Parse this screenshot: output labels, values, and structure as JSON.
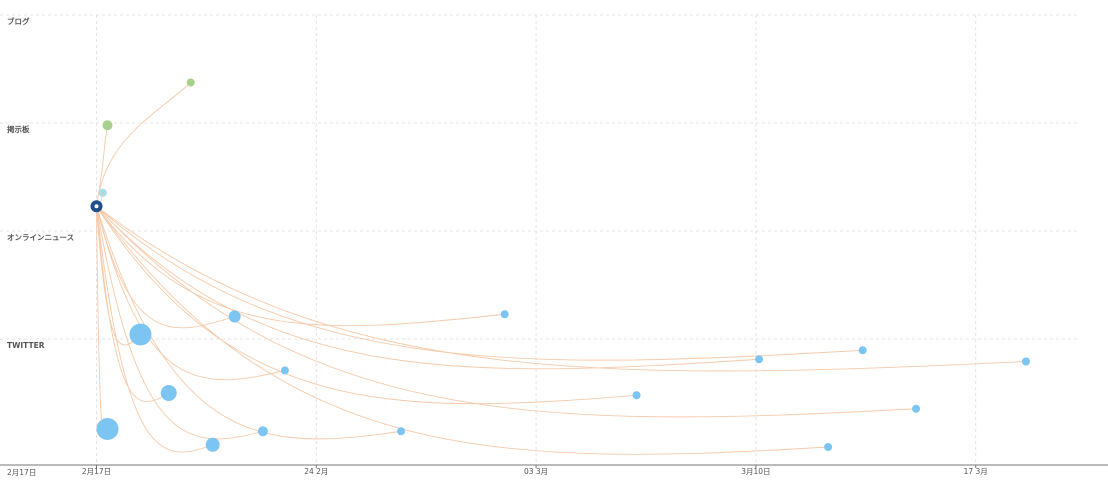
{
  "chart_data": {
    "type": "scatter",
    "bands": [
      "ブログ",
      "掲示板",
      "オンラインニュース",
      "TWITTER"
    ],
    "x_ticks": [
      {
        "label": "2月17日",
        "day": 0
      },
      {
        "label": "24 2月",
        "day": 7
      },
      {
        "label": "03 3月",
        "day": 14
      },
      {
        "label": "3月10日",
        "day": 21
      },
      {
        "label": "17 3月",
        "day": 28
      }
    ],
    "x_origin_label": "2月17日",
    "xlim_days": [
      -3,
      32
    ],
    "grid": true,
    "source": {
      "day": 0.0,
      "y": 0.425,
      "size": 6
    },
    "points": [
      {
        "band": "ブログ",
        "day": 3.0,
        "y": 0.15,
        "size": 4
      },
      {
        "band": "掲示板",
        "day": 0.35,
        "y": 0.245,
        "size": 5
      },
      {
        "band": "オンラインニュース",
        "day": 0.2,
        "y": 0.395,
        "size": 4
      },
      {
        "band": "TWITTER",
        "day": 4.4,
        "y": 0.67,
        "size": 6
      },
      {
        "band": "TWITTER",
        "day": 1.4,
        "y": 0.71,
        "size": 11
      },
      {
        "band": "TWITTER",
        "day": 6.0,
        "y": 0.79,
        "size": 4
      },
      {
        "band": "TWITTER",
        "day": 2.3,
        "y": 0.84,
        "size": 8
      },
      {
        "band": "TWITTER",
        "day": 5.3,
        "y": 0.925,
        "size": 5
      },
      {
        "band": "TWITTER",
        "day": 0.35,
        "y": 0.92,
        "size": 11
      },
      {
        "band": "TWITTER",
        "day": 3.7,
        "y": 0.955,
        "size": 7
      },
      {
        "band": "TWITTER",
        "day": 9.7,
        "y": 0.925,
        "size": 4
      },
      {
        "band": "TWITTER",
        "day": 13.0,
        "y": 0.665,
        "size": 4
      },
      {
        "band": "TWITTER",
        "day": 17.2,
        "y": 0.845,
        "size": 4
      },
      {
        "band": "TWITTER",
        "day": 21.1,
        "y": 0.765,
        "size": 4
      },
      {
        "band": "TWITTER",
        "day": 24.4,
        "y": 0.745,
        "size": 4
      },
      {
        "band": "TWITTER",
        "day": 23.3,
        "y": 0.96,
        "size": 4
      },
      {
        "band": "TWITTER",
        "day": 26.1,
        "y": 0.875,
        "size": 4
      },
      {
        "band": "TWITTER",
        "day": 29.6,
        "y": 0.77,
        "size": 4
      }
    ],
    "colors": {
      "source": "#1f4e8c",
      "TWITTER": "#7cc4f2",
      "オンラインニュース": "#a8dcef",
      "掲示板": "#a8d08d",
      "ブログ": "#a8d08d",
      "edge": "#f6c9a9"
    }
  }
}
